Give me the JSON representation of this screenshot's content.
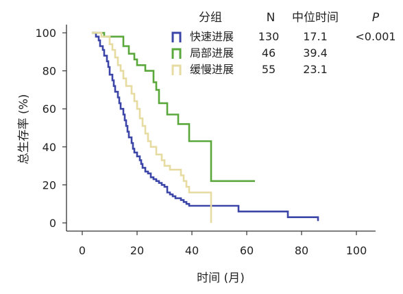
{
  "chart_data": {
    "type": "line",
    "style": "step",
    "xlabel": "时间 (月)",
    "ylabel": "总生存率 (%)",
    "xlim": [
      0,
      100
    ],
    "ylim": [
      0,
      100
    ],
    "xticks": [
      0,
      20,
      40,
      60,
      80,
      100
    ],
    "yticks": [
      0,
      20,
      40,
      60,
      80,
      100
    ],
    "grid": false,
    "legend_position": "top-right",
    "legend": {
      "headers": {
        "group": "分组",
        "n": "N",
        "median": "中位时间",
        "p": "P"
      },
      "p_value": "<0.001"
    },
    "series": [
      {
        "name": "快速进展",
        "n": "130",
        "median": "17.1",
        "color": "#3b45a8",
        "points": [
          [
            3.5,
            100
          ],
          [
            5,
            98
          ],
          [
            6,
            96
          ],
          [
            6.5,
            93
          ],
          [
            7.5,
            91
          ],
          [
            8,
            88
          ],
          [
            9,
            85
          ],
          [
            9.5,
            82
          ],
          [
            10,
            78
          ],
          [
            11,
            75
          ],
          [
            11.5,
            72
          ],
          [
            12,
            69
          ],
          [
            13,
            66
          ],
          [
            13.5,
            63
          ],
          [
            14,
            60
          ],
          [
            15,
            57
          ],
          [
            15.5,
            54
          ],
          [
            16,
            51
          ],
          [
            16.5,
            48
          ],
          [
            17,
            45
          ],
          [
            18,
            42
          ],
          [
            18.5,
            39
          ],
          [
            19,
            37
          ],
          [
            20,
            35
          ],
          [
            21,
            33
          ],
          [
            21.5,
            31
          ],
          [
            22,
            29
          ],
          [
            23,
            27
          ],
          [
            24,
            26
          ],
          [
            25,
            24
          ],
          [
            26,
            23
          ],
          [
            27,
            22
          ],
          [
            28,
            21
          ],
          [
            29,
            20
          ],
          [
            30,
            19
          ],
          [
            31,
            16
          ],
          [
            32,
            15
          ],
          [
            33,
            14
          ],
          [
            34,
            13
          ],
          [
            36,
            12
          ],
          [
            37,
            11
          ],
          [
            38,
            10
          ],
          [
            39,
            9
          ],
          [
            57,
            9
          ],
          [
            57,
            6
          ],
          [
            75,
            6
          ],
          [
            75,
            3
          ],
          [
            86,
            3
          ],
          [
            86,
            1
          ]
        ]
      },
      {
        "name": "局部进展",
        "n": "46",
        "median": "39.4",
        "color": "#5aa83c",
        "points": [
          [
            3.5,
            100
          ],
          [
            8,
            100
          ],
          [
            8,
            98
          ],
          [
            15,
            98
          ],
          [
            15,
            93
          ],
          [
            17,
            93
          ],
          [
            17,
            89
          ],
          [
            19,
            89
          ],
          [
            19,
            86
          ],
          [
            20,
            86
          ],
          [
            20,
            83
          ],
          [
            23,
            83
          ],
          [
            23,
            80
          ],
          [
            26,
            80
          ],
          [
            26,
            74
          ],
          [
            27,
            74
          ],
          [
            27,
            70
          ],
          [
            28,
            70
          ],
          [
            28,
            63
          ],
          [
            31,
            63
          ],
          [
            31,
            57
          ],
          [
            35,
            57
          ],
          [
            35,
            52
          ],
          [
            39,
            52
          ],
          [
            39,
            43
          ],
          [
            47,
            43
          ],
          [
            47,
            22
          ],
          [
            63,
            22
          ]
        ]
      },
      {
        "name": "缓慢进展",
        "n": "55",
        "median": "23.1",
        "color": "#e6dba0",
        "points": [
          [
            3.5,
            100
          ],
          [
            7,
            100
          ],
          [
            7,
            98
          ],
          [
            10,
            98
          ],
          [
            10,
            94
          ],
          [
            11,
            94
          ],
          [
            11,
            91
          ],
          [
            12,
            91
          ],
          [
            12,
            87
          ],
          [
            13,
            87
          ],
          [
            13,
            83
          ],
          [
            14,
            83
          ],
          [
            14,
            80
          ],
          [
            15,
            80
          ],
          [
            15,
            76
          ],
          [
            16,
            76
          ],
          [
            16,
            72
          ],
          [
            18,
            72
          ],
          [
            18,
            68
          ],
          [
            19,
            68
          ],
          [
            19,
            64
          ],
          [
            20,
            64
          ],
          [
            20,
            60
          ],
          [
            21,
            60
          ],
          [
            21,
            55
          ],
          [
            22,
            55
          ],
          [
            22,
            51
          ],
          [
            23,
            51
          ],
          [
            23,
            47
          ],
          [
            24,
            47
          ],
          [
            24,
            43
          ],
          [
            25,
            43
          ],
          [
            25,
            40
          ],
          [
            27,
            40
          ],
          [
            27,
            36
          ],
          [
            29,
            36
          ],
          [
            29,
            33
          ],
          [
            30,
            33
          ],
          [
            30,
            30
          ],
          [
            32,
            30
          ],
          [
            32,
            28
          ],
          [
            36,
            28
          ],
          [
            36,
            25
          ],
          [
            37,
            25
          ],
          [
            37,
            22
          ],
          [
            38,
            22
          ],
          [
            38,
            19
          ],
          [
            39,
            19
          ],
          [
            39,
            16
          ],
          [
            47,
            16
          ],
          [
            47,
            0
          ]
        ]
      }
    ]
  }
}
